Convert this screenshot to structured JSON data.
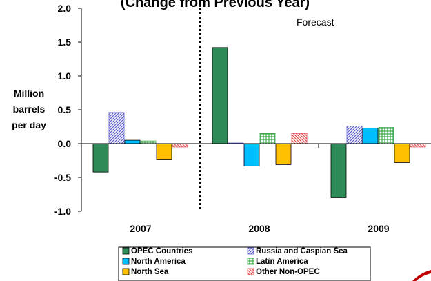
{
  "chart_data": {
    "type": "bar",
    "title": "(Change from Previous Year)",
    "ylabel": [
      "Million",
      "barrels",
      "per day"
    ],
    "xlabel": "",
    "ylim": [
      -1.0,
      2.0
    ],
    "yticks": [
      "2.0",
      "1.5",
      "1.0",
      "0.5",
      "0.0",
      "-0.5",
      "-1.0"
    ],
    "ytick_values": [
      2.0,
      1.5,
      1.0,
      0.5,
      0.0,
      -0.5,
      -1.0
    ],
    "categories": [
      "2007",
      "2008",
      "2009"
    ],
    "annotation": "Forecast",
    "forecast_divider_after_category": "2007",
    "series": [
      {
        "name": "OPEC Countries",
        "values": [
          -0.42,
          1.42,
          -0.8
        ],
        "color": "#2e8b57",
        "pattern": "solid"
      },
      {
        "name": "Russia and Caspian Sea",
        "values": [
          0.46,
          0.01,
          0.26
        ],
        "color": "#5b5bc8",
        "pattern": "diag-right"
      },
      {
        "name": "North America",
        "values": [
          0.05,
          -0.33,
          0.23
        ],
        "color": "#00bfff",
        "pattern": "solid"
      },
      {
        "name": "Latin America",
        "values": [
          0.04,
          0.15,
          0.24
        ],
        "color": "#3aaa4a",
        "pattern": "grid"
      },
      {
        "name": "North Sea",
        "values": [
          -0.24,
          -0.31,
          -0.28
        ],
        "color": "#ffc000",
        "pattern": "solid"
      },
      {
        "name": "Other Non-OPEC",
        "values": [
          -0.05,
          0.15,
          -0.05
        ],
        "color": "#e05050",
        "pattern": "diag-left"
      }
    ],
    "legend_position": "bottom",
    "grid": false
  }
}
